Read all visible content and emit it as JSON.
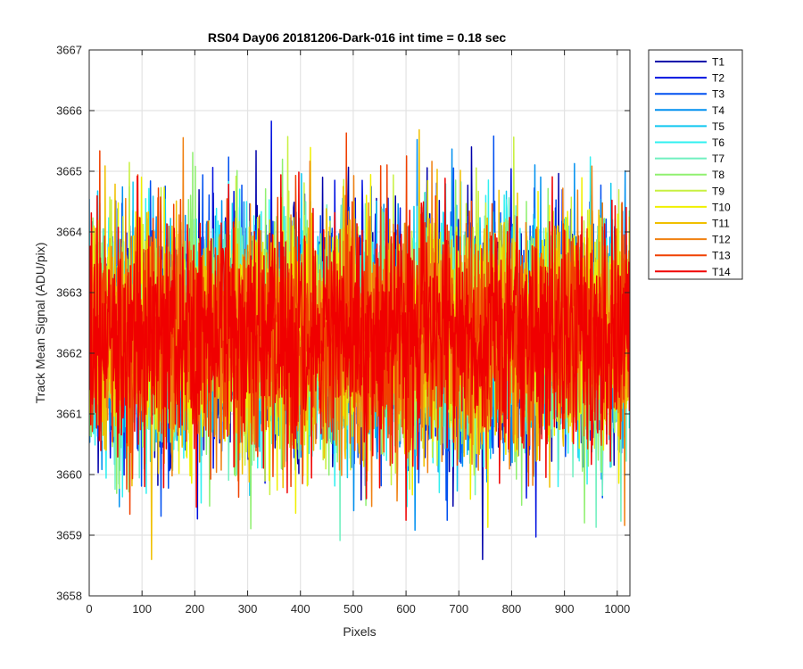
{
  "chart_data": {
    "type": "line",
    "title": "RS04 Day06 20181206-Dark-016 int time = 0.18 sec",
    "xlabel": "Pixels",
    "ylabel": "Track Mean Signal (ADU/pix)",
    "xlim": [
      0,
      1024
    ],
    "ylim": [
      3658,
      3667
    ],
    "xticks": [
      0,
      100,
      200,
      300,
      400,
      500,
      600,
      700,
      800,
      900,
      1000
    ],
    "yticks": [
      3658,
      3659,
      3660,
      3661,
      3662,
      3663,
      3664,
      3665,
      3666,
      3667
    ],
    "grid": true,
    "legend_position": "outside-top-right",
    "noise_model": {
      "mean": 3662.3,
      "std": 0.95,
      "n_points": 1024,
      "note_range": [
        3658.6,
        3666.2
      ]
    },
    "series": [
      {
        "name": "T1",
        "color": "#0000AA"
      },
      {
        "name": "T2",
        "color": "#0010E0"
      },
      {
        "name": "T3",
        "color": "#0050F0"
      },
      {
        "name": "T4",
        "color": "#0090F0"
      },
      {
        "name": "T5",
        "color": "#10C8F0"
      },
      {
        "name": "T6",
        "color": "#30F0F0"
      },
      {
        "name": "T7",
        "color": "#70F0C0"
      },
      {
        "name": "T8",
        "color": "#90F070"
      },
      {
        "name": "T9",
        "color": "#C8F040"
      },
      {
        "name": "T10",
        "color": "#F0F000"
      },
      {
        "name": "T11",
        "color": "#F0C000"
      },
      {
        "name": "T12",
        "color": "#F08010"
      },
      {
        "name": "T13",
        "color": "#F04000"
      },
      {
        "name": "T14",
        "color": "#F00000"
      }
    ]
  }
}
